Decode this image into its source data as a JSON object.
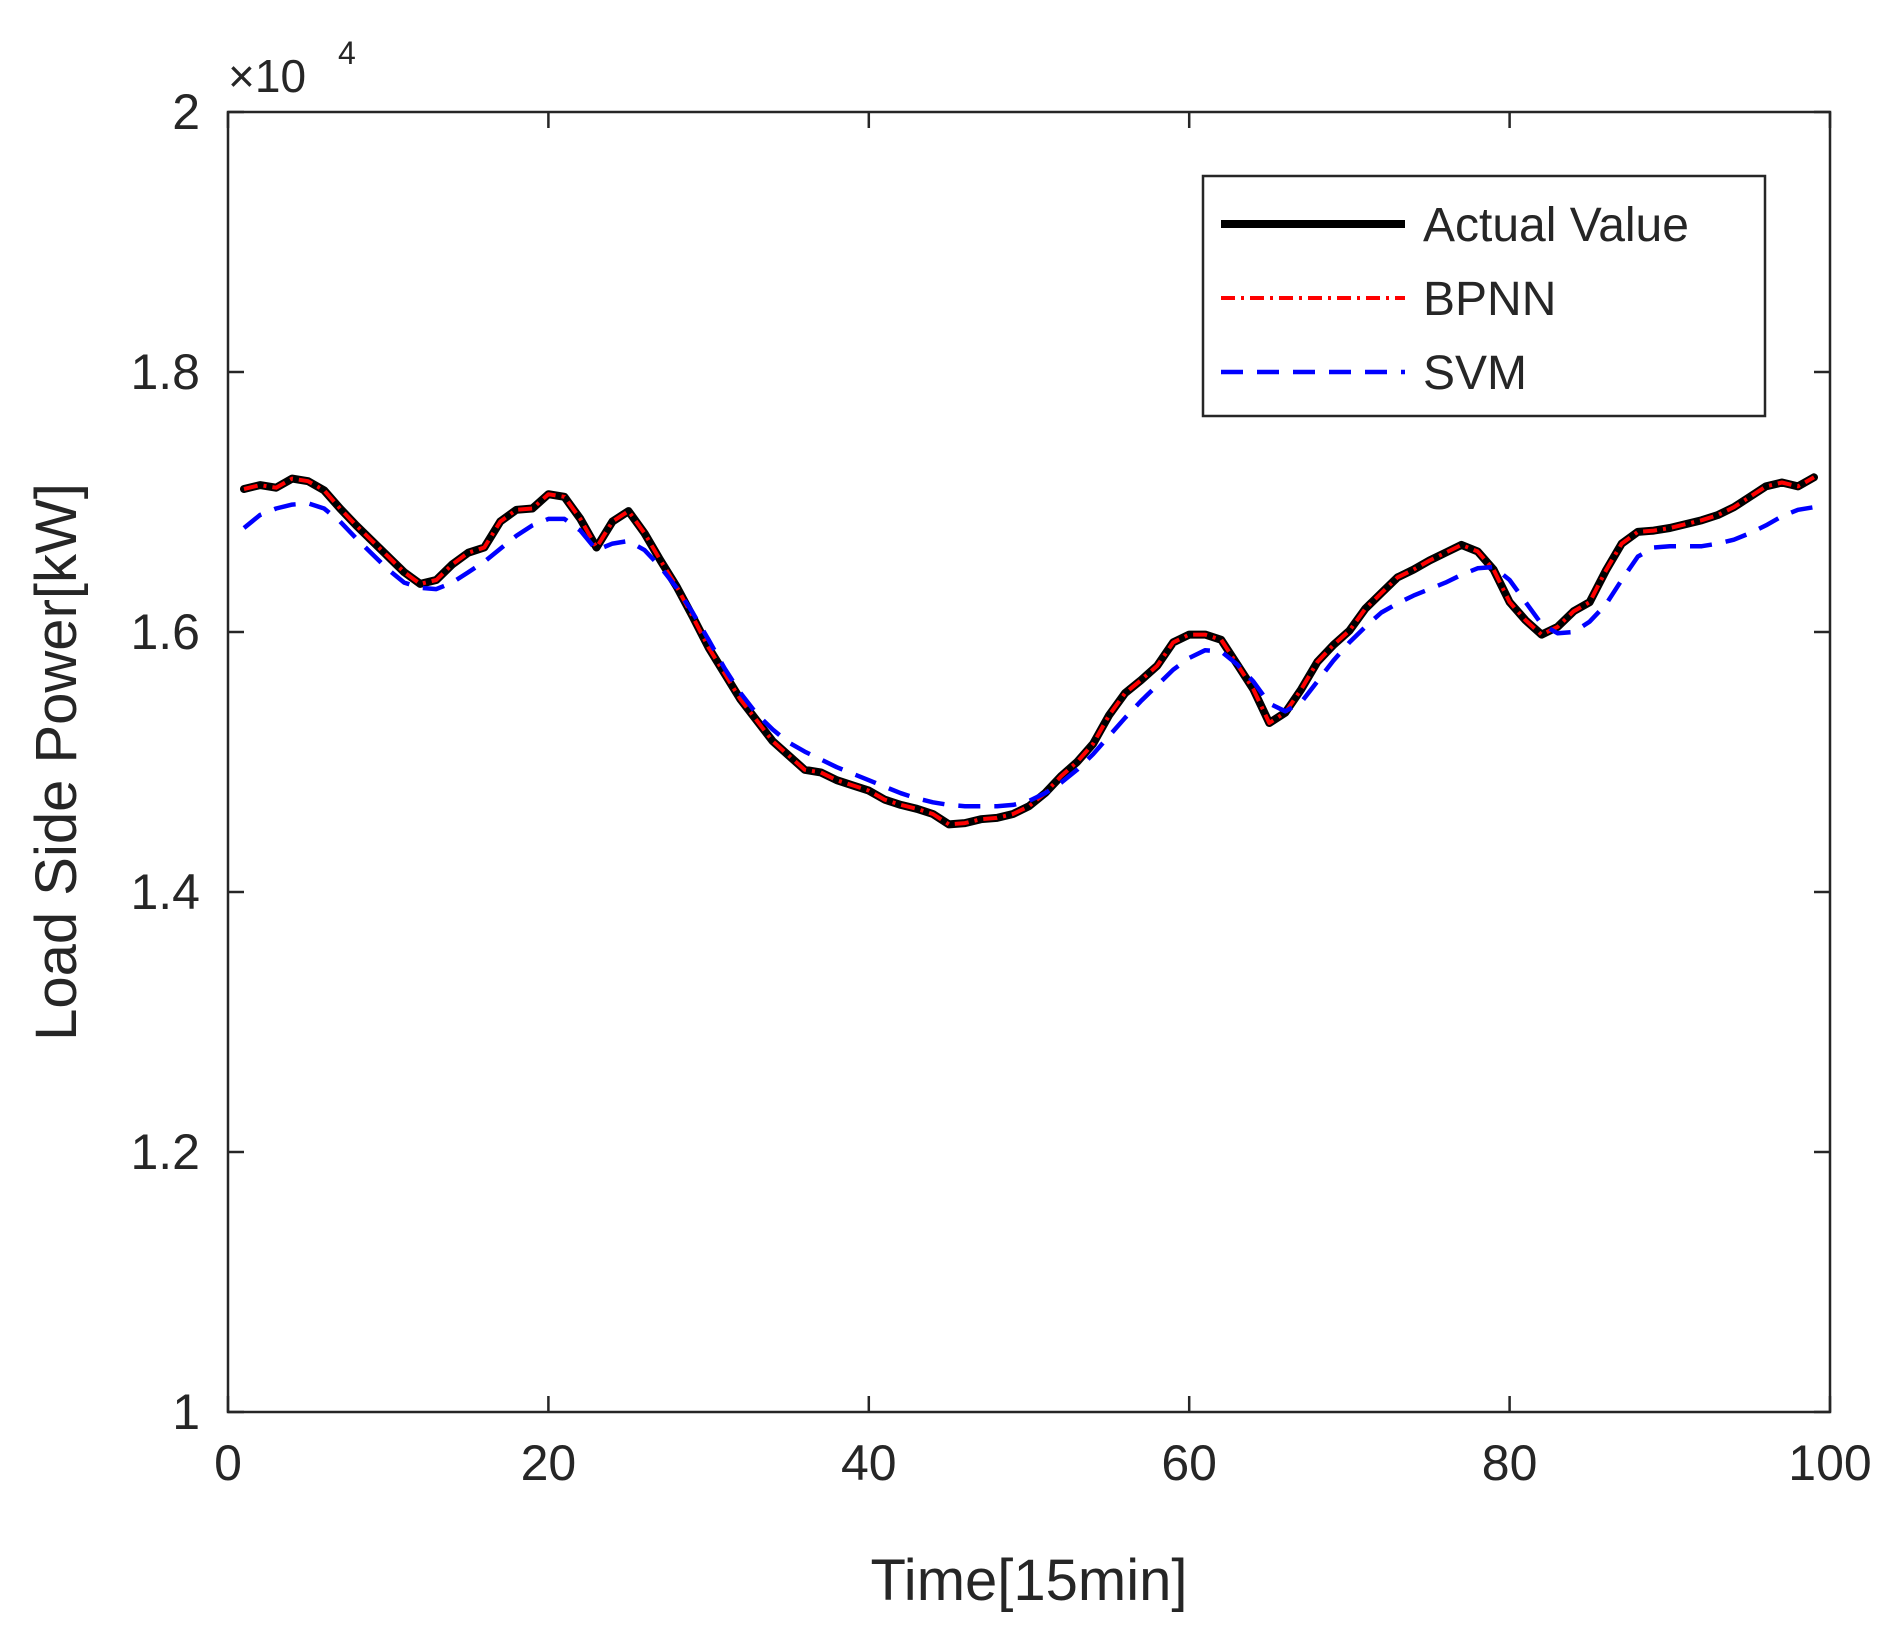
{
  "chart_data": {
    "type": "line",
    "title": "",
    "xlabel": "Time[15min]",
    "ylabel": "Load Side Power[kW]",
    "xlim": [
      0,
      100
    ],
    "ylim": [
      10000,
      20000
    ],
    "xticks": [
      0,
      20,
      40,
      60,
      80,
      100
    ],
    "xtick_labels": [
      "0",
      "20",
      "40",
      "60",
      "80",
      "100"
    ],
    "yticks": [
      10000,
      12000,
      14000,
      16000,
      18000,
      20000
    ],
    "ytick_labels": [
      "1",
      "1.2",
      "1.4",
      "1.6",
      "1.8",
      "2"
    ],
    "exponent_label": {
      "base": "×10",
      "power": "4"
    },
    "grid": false,
    "legend_position": "top-right",
    "x_start": 1,
    "x_step": 1,
    "series": [
      {
        "name": "Actual Value",
        "color": "#000000",
        "style": "solid",
        "values": [
          17100,
          17130,
          17110,
          17180,
          17160,
          17090,
          16950,
          16820,
          16700,
          16580,
          16460,
          16370,
          16400,
          16520,
          16610,
          16650,
          16850,
          16940,
          16950,
          17060,
          17040,
          16870,
          16650,
          16850,
          16930,
          16760,
          16550,
          16350,
          16120,
          15880,
          15680,
          15480,
          15320,
          15160,
          15050,
          14940,
          14920,
          14860,
          14820,
          14780,
          14710,
          14670,
          14640,
          14600,
          14520,
          14530,
          14560,
          14570,
          14600,
          14660,
          14760,
          14890,
          15000,
          15140,
          15360,
          15530,
          15630,
          15740,
          15920,
          15980,
          15980,
          15940,
          15750,
          15560,
          15300,
          15380,
          15560,
          15770,
          15900,
          16010,
          16180,
          16300,
          16420,
          16480,
          16550,
          16610,
          16670,
          16620,
          16480,
          16230,
          16090,
          15980,
          16040,
          16160,
          16230,
          16470,
          16680,
          16770,
          16780,
          16800,
          16830,
          16860,
          16900,
          16960,
          17040,
          17120,
          17150,
          17120,
          17190
        ]
      },
      {
        "name": "BPNN",
        "color": "#ff0000",
        "style": "dashdot",
        "values": [
          17100,
          17130,
          17110,
          17180,
          17160,
          17090,
          16950,
          16820,
          16700,
          16580,
          16460,
          16370,
          16400,
          16520,
          16610,
          16650,
          16850,
          16940,
          16950,
          17060,
          17040,
          16870,
          16650,
          16850,
          16930,
          16760,
          16550,
          16350,
          16120,
          15880,
          15680,
          15480,
          15320,
          15160,
          15050,
          14940,
          14920,
          14860,
          14820,
          14780,
          14710,
          14670,
          14640,
          14600,
          14520,
          14530,
          14560,
          14570,
          14600,
          14660,
          14760,
          14890,
          15000,
          15140,
          15360,
          15530,
          15630,
          15740,
          15920,
          15980,
          15980,
          15940,
          15750,
          15560,
          15300,
          15380,
          15560,
          15770,
          15900,
          16010,
          16180,
          16300,
          16420,
          16480,
          16550,
          16610,
          16670,
          16620,
          16480,
          16230,
          16090,
          15980,
          16040,
          16160,
          16230,
          16470,
          16680,
          16770,
          16780,
          16800,
          16830,
          16860,
          16900,
          16960,
          17040,
          17120,
          17150,
          17120,
          17190
        ]
      },
      {
        "name": "SVM",
        "color": "#0000ff",
        "style": "dashed",
        "values": [
          16800,
          16900,
          16950,
          16980,
          16990,
          16950,
          16850,
          16720,
          16600,
          16480,
          16380,
          16340,
          16330,
          16380,
          16460,
          16540,
          16640,
          16740,
          16820,
          16870,
          16870,
          16780,
          16630,
          16680,
          16700,
          16630,
          16500,
          16340,
          16150,
          15940,
          15720,
          15530,
          15370,
          15250,
          15150,
          15080,
          15020,
          14960,
          14910,
          14860,
          14810,
          14760,
          14720,
          14690,
          14670,
          14660,
          14660,
          14660,
          14670,
          14700,
          14760,
          14840,
          14940,
          15060,
          15200,
          15340,
          15470,
          15590,
          15710,
          15800,
          15860,
          15850,
          15750,
          15620,
          15450,
          15390,
          15460,
          15620,
          15780,
          15920,
          16040,
          16150,
          16220,
          16280,
          16330,
          16380,
          16440,
          16490,
          16500,
          16400,
          16230,
          16060,
          15990,
          16000,
          16080,
          16210,
          16400,
          16580,
          16650,
          16660,
          16660,
          16660,
          16680,
          16710,
          16760,
          16820,
          16890,
          16940,
          16960
        ]
      }
    ]
  }
}
